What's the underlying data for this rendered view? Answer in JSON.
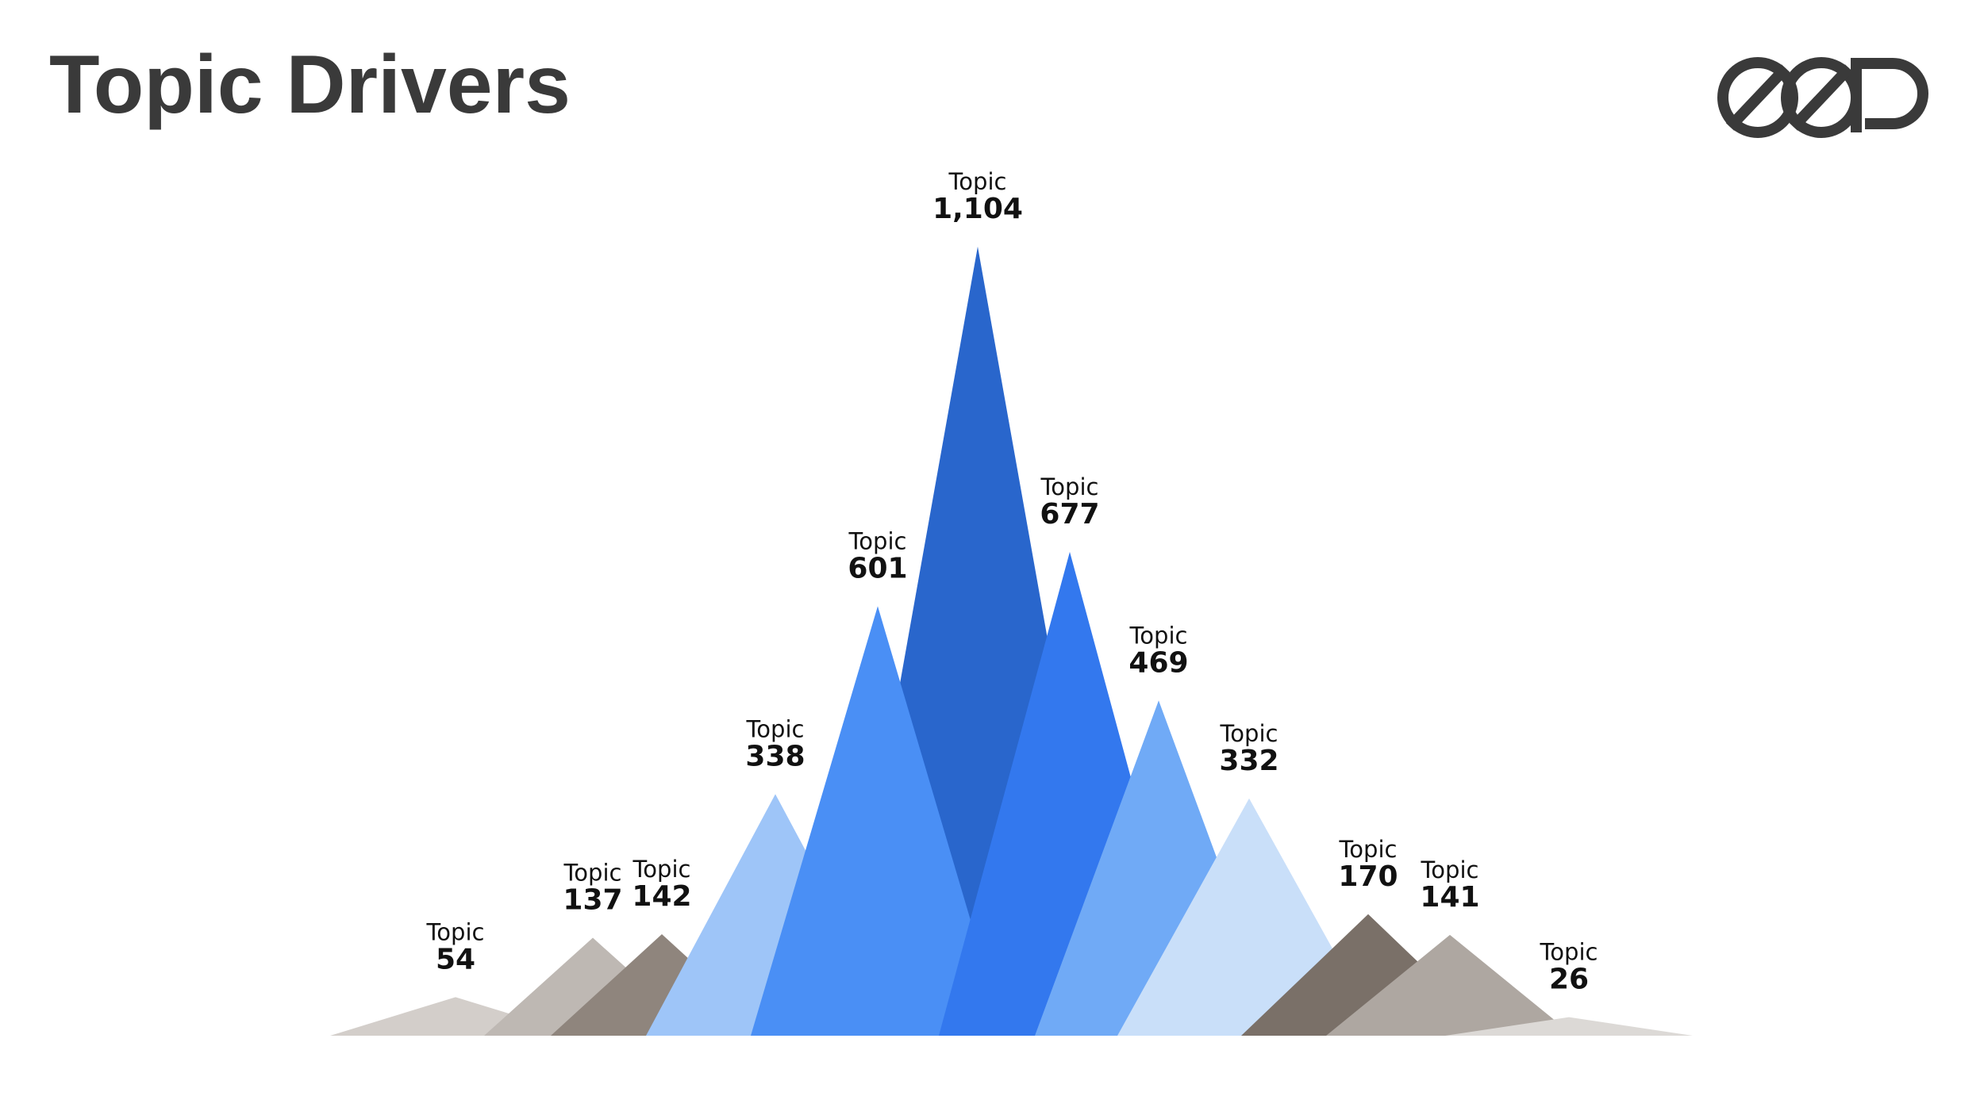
{
  "chart_data": {
    "type": "mountain",
    "title": "Topic Drivers",
    "categories": [
      "Topic",
      "Topic",
      "Topic",
      "Topic",
      "Topic",
      "Topic",
      "Topic",
      "Topic",
      "Topic",
      "Topic",
      "Topic",
      "Topic"
    ],
    "values": [
      54,
      137,
      142,
      338,
      601,
      1104,
      677,
      469,
      332,
      170,
      141,
      26
    ],
    "value_labels": [
      "54",
      "137",
      "142",
      "338",
      "601",
      "1,104",
      "677",
      "469",
      "332",
      "170",
      "141",
      "26"
    ],
    "colors": [
      "#d3ceca",
      "#beb8b3",
      "#8f857d",
      "#9ec5f8",
      "#4a8ff5",
      "#2966cc",
      "#3378ee",
      "#70aaf6",
      "#c9dff9",
      "#7a7068",
      "#aea7a1",
      "#dcd9d6"
    ]
  }
}
